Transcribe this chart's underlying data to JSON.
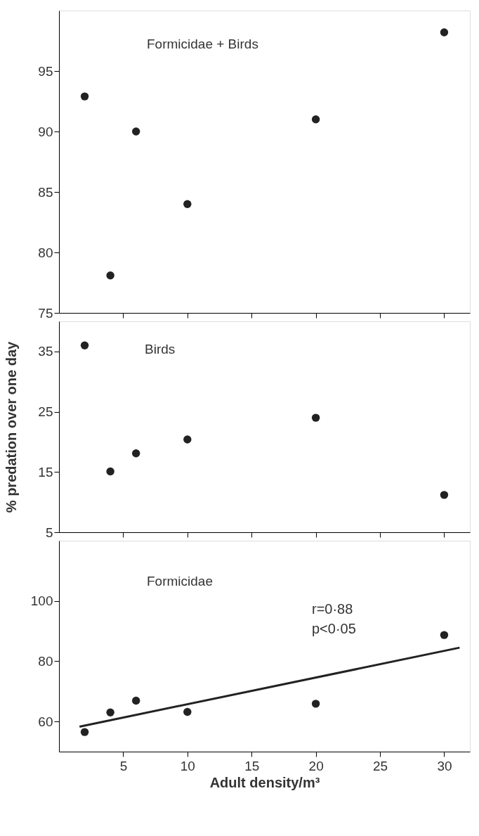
{
  "chart_data": [
    {
      "type": "scatter",
      "title": "Formicidae + Birds",
      "x": [
        2,
        4,
        6,
        10,
        20,
        30
      ],
      "xlim": [
        0,
        32
      ],
      "xticks": [
        5,
        10,
        15,
        20,
        25,
        30
      ],
      "ylim": [
        75,
        100
      ],
      "yticks": [
        75,
        80,
        85,
        90,
        95
      ],
      "tick_labels": "y",
      "marker": "circle",
      "series": [
        {
          "color": "#222222",
          "values": [
            92.9,
            78.1,
            90.0,
            84.0,
            91.0,
            98.2
          ]
        }
      ]
    },
    {
      "type": "scatter",
      "title": "Birds",
      "ylabel": "% predation over one day",
      "x": [
        2,
        4,
        6,
        10,
        20,
        30
      ],
      "xlim": [
        0,
        32
      ],
      "xticks": [
        5,
        10,
        15,
        20,
        25,
        30
      ],
      "ylim": [
        5,
        40
      ],
      "yticks": [
        5,
        15,
        25,
        35
      ],
      "tick_labels": "y",
      "marker": "circle",
      "series": [
        {
          "color": "#222222",
          "values": [
            36.0,
            15.1,
            18.1,
            20.4,
            24.0,
            11.2
          ]
        }
      ]
    },
    {
      "type": "scatter",
      "title": "Formicidae",
      "xlabel": "Adult density/m³",
      "x": [
        2,
        4,
        6,
        10,
        20,
        30
      ],
      "xlim": [
        0,
        32
      ],
      "xticks": [
        5,
        10,
        15,
        20,
        25,
        30
      ],
      "ylim": [
        50,
        120
      ],
      "yticks": [
        60,
        80,
        100
      ],
      "marker": "circle",
      "annotations": [
        "r=0·88",
        "p<0·05"
      ],
      "series": [
        {
          "color": "#222222",
          "values": [
            56.5,
            63.0,
            66.9,
            63.2,
            65.9,
            88.7
          ]
        },
        {
          "type": "line",
          "color": "#222222",
          "marker": "none",
          "line_style": "solid",
          "x": [
            1.6,
            31.2
          ],
          "values": [
            58.3,
            84.5
          ]
        }
      ]
    }
  ]
}
